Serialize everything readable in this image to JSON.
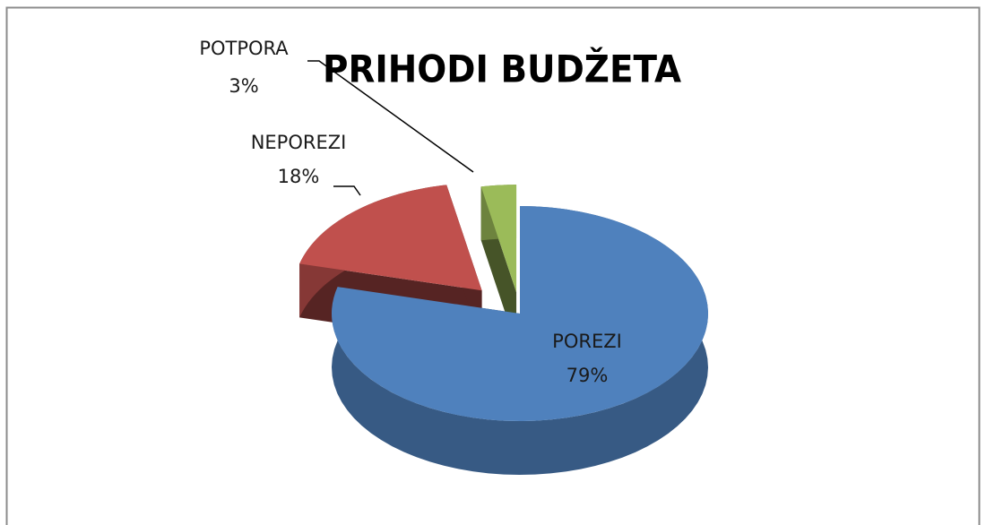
{
  "chart_data": {
    "type": "pie3d",
    "title": "PRIHODI BUDŽETA",
    "categories": [
      "POREZI",
      "NEPOREZI",
      "POTPORA"
    ],
    "values": [
      79,
      18,
      3
    ],
    "value_labels": [
      "79%",
      "18%",
      "3%"
    ],
    "colors": [
      "#4f81bd",
      "#c0504d",
      "#9bbb59"
    ]
  }
}
